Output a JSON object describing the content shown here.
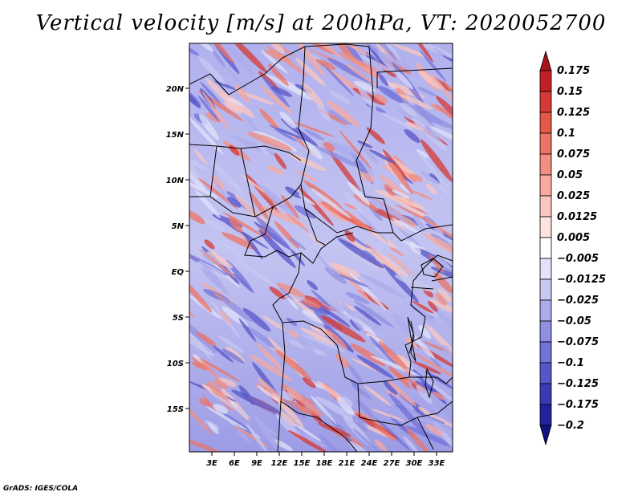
{
  "title": "Vertical velocity [m/s] at 200hPa, VT: 2020052700",
  "credit": "GrADS: IGES/COLA",
  "map": {
    "lat_labels": [
      "20N",
      "15N",
      "10N",
      "5N",
      "EQ",
      "5S",
      "10S",
      "15S"
    ],
    "lon_labels": [
      "3E",
      "6E",
      "9E",
      "12E",
      "15E",
      "18E",
      "21E",
      "24E",
      "27E",
      "30E",
      "33E"
    ]
  },
  "colorbar": {
    "labels": [
      "0.175",
      "0.15",
      "0.125",
      "0.1",
      "0.075",
      "0.05",
      "0.025",
      "0.0125",
      "0.005",
      "−0.005",
      "−0.0125",
      "−0.025",
      "−0.05",
      "−0.075",
      "−0.1",
      "−0.125",
      "−0.175",
      "−0.2"
    ],
    "colors": [
      "#a8141c",
      "#c22026",
      "#d63a36",
      "#e45848",
      "#ec7466",
      "#f28e82",
      "#f6aaa0",
      "#fac8c0",
      "#fde4de",
      "#ffffff",
      "#e2e2fa",
      "#c8c8f2",
      "#acacec",
      "#9090e2",
      "#7272d8",
      "#5656c8",
      "#3a3ab4",
      "#22229c",
      "#12127e"
    ]
  }
}
